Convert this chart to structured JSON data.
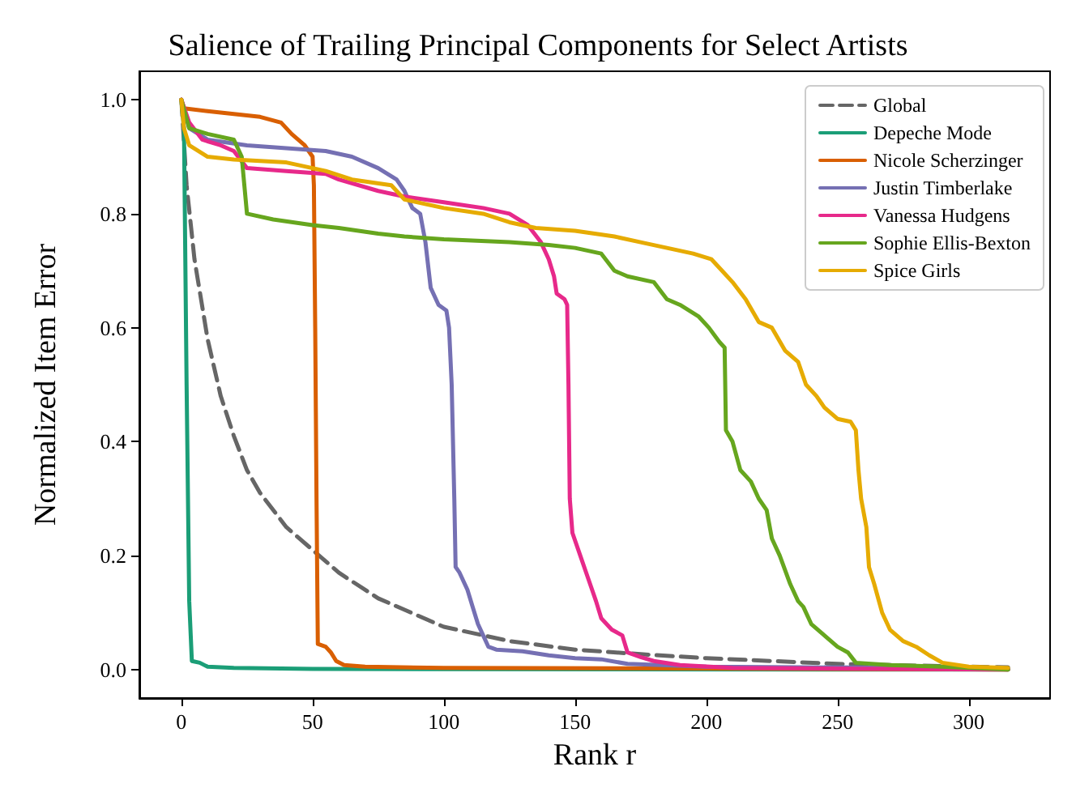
{
  "chart_data": {
    "type": "line",
    "title": "Salience of Trailing Principal Components for Select Artists",
    "xlabel": "Rank r",
    "ylabel": "Normalized Item Error",
    "xlim": [
      -16,
      331
    ],
    "xticks": [
      0,
      50,
      100,
      150,
      200,
      250,
      300
    ],
    "ylim": [
      -0.05,
      1.05
    ],
    "yticks": [
      {
        "value": 0,
        "label": "0.0"
      },
      {
        "value": 0.2,
        "label": "0.2"
      },
      {
        "value": 0.4,
        "label": "0.4"
      },
      {
        "value": 0.6,
        "label": "0.6"
      },
      {
        "value": 0.8,
        "label": "0.8"
      },
      {
        "value": 1,
        "label": "1.0"
      }
    ],
    "grid": false,
    "legend": "top right",
    "marker": "none",
    "series": [
      {
        "name": "Global",
        "color": "#666666",
        "line_style": "dashed",
        "x": [
          0,
          2,
          5,
          10,
          15,
          20,
          25,
          30,
          40,
          50,
          60,
          75,
          100,
          125,
          150,
          175,
          200,
          250,
          300,
          315
        ],
        "values": [
          1.0,
          0.85,
          0.72,
          0.58,
          0.48,
          0.41,
          0.35,
          0.31,
          0.25,
          0.21,
          0.17,
          0.125,
          0.075,
          0.05,
          0.035,
          0.027,
          0.02,
          0.01,
          0.005,
          0.004
        ]
      },
      {
        "name": "Depeche Mode",
        "color": "#1b9e77",
        "x": [
          0,
          1,
          2,
          3,
          4,
          7,
          10,
          20,
          50,
          315
        ],
        "values": [
          1.0,
          0.95,
          0.5,
          0.12,
          0.015,
          0.012,
          0.005,
          0.003,
          0.001,
          0.0
        ]
      },
      {
        "name": "Nicole Scherzinger",
        "color": "#d95f02",
        "x": [
          0,
          1,
          10,
          20,
          30,
          38,
          42,
          47,
          50,
          50.5,
          51,
          51.5,
          52,
          55,
          57,
          59,
          62,
          70,
          100,
          200,
          315
        ],
        "values": [
          1.0,
          0.985,
          0.98,
          0.975,
          0.97,
          0.96,
          0.94,
          0.92,
          0.9,
          0.85,
          0.6,
          0.3,
          0.045,
          0.04,
          0.03,
          0.015,
          0.008,
          0.005,
          0.003,
          0.002,
          0.0
        ]
      },
      {
        "name": "Justin Timberlake",
        "color": "#7570b3",
        "x": [
          0,
          3,
          10,
          25,
          40,
          55,
          65,
          75,
          82,
          85,
          88,
          91,
          93,
          95,
          98,
          101,
          102,
          103,
          104,
          104.5,
          106,
          109,
          111,
          113,
          115,
          117,
          120,
          130,
          140,
          150,
          160,
          170,
          200,
          315
        ],
        "values": [
          1.0,
          0.95,
          0.93,
          0.92,
          0.915,
          0.91,
          0.9,
          0.88,
          0.86,
          0.84,
          0.81,
          0.8,
          0.75,
          0.67,
          0.64,
          0.63,
          0.6,
          0.5,
          0.3,
          0.18,
          0.17,
          0.14,
          0.11,
          0.08,
          0.06,
          0.04,
          0.035,
          0.032,
          0.025,
          0.02,
          0.018,
          0.01,
          0.005,
          0.002
        ]
      },
      {
        "name": "Vanessa Hudgens",
        "color": "#e7298a",
        "x": [
          0,
          3,
          8,
          15,
          20,
          25,
          40,
          55,
          60,
          75,
          85,
          100,
          115,
          125,
          132,
          137,
          140,
          142,
          143,
          146,
          147,
          147.5,
          148,
          149,
          152,
          155,
          158,
          160,
          164,
          168,
          170,
          175,
          180,
          190,
          210,
          315
        ],
        "values": [
          1.0,
          0.96,
          0.93,
          0.92,
          0.91,
          0.88,
          0.875,
          0.87,
          0.86,
          0.84,
          0.83,
          0.82,
          0.81,
          0.8,
          0.78,
          0.75,
          0.72,
          0.69,
          0.66,
          0.65,
          0.64,
          0.5,
          0.3,
          0.24,
          0.2,
          0.16,
          0.12,
          0.09,
          0.07,
          0.06,
          0.03,
          0.022,
          0.015,
          0.008,
          0.003,
          0.0
        ]
      },
      {
        "name": "Sophie Ellis-Bexton",
        "color": "#66a61e",
        "x": [
          0,
          3,
          10,
          20,
          23,
          24,
          25,
          35,
          50,
          60,
          75,
          85,
          100,
          125,
          140,
          150,
          160,
          165,
          170,
          180,
          185,
          190,
          197,
          201,
          205,
          207,
          207.5,
          210,
          213,
          217,
          220,
          223,
          225,
          228,
          232,
          235,
          237,
          240,
          245,
          250,
          254,
          257,
          270,
          290,
          315
        ],
        "values": [
          1.0,
          0.95,
          0.94,
          0.93,
          0.9,
          0.85,
          0.8,
          0.79,
          0.78,
          0.775,
          0.765,
          0.76,
          0.755,
          0.75,
          0.745,
          0.74,
          0.73,
          0.7,
          0.69,
          0.68,
          0.65,
          0.64,
          0.62,
          0.6,
          0.575,
          0.565,
          0.42,
          0.4,
          0.35,
          0.33,
          0.3,
          0.28,
          0.23,
          0.2,
          0.15,
          0.12,
          0.11,
          0.08,
          0.06,
          0.04,
          0.03,
          0.012,
          0.008,
          0.005,
          0.0
        ]
      },
      {
        "name": "Spice Girls",
        "color": "#e6ab02",
        "x": [
          0,
          1,
          3,
          10,
          20,
          40,
          55,
          65,
          80,
          85,
          100,
          115,
          125,
          135,
          150,
          165,
          175,
          185,
          195,
          202,
          206,
          210,
          215,
          220,
          225,
          230,
          235,
          238,
          242,
          245,
          250,
          255,
          257,
          258,
          259,
          261,
          262,
          264,
          267,
          270,
          275,
          280,
          285,
          290,
          300,
          315
        ],
        "values": [
          1.0,
          0.95,
          0.92,
          0.9,
          0.895,
          0.89,
          0.875,
          0.86,
          0.85,
          0.825,
          0.81,
          0.8,
          0.785,
          0.775,
          0.77,
          0.76,
          0.75,
          0.74,
          0.73,
          0.72,
          0.7,
          0.68,
          0.65,
          0.61,
          0.6,
          0.56,
          0.54,
          0.5,
          0.48,
          0.46,
          0.44,
          0.435,
          0.42,
          0.35,
          0.3,
          0.25,
          0.18,
          0.15,
          0.1,
          0.07,
          0.05,
          0.04,
          0.025,
          0.012,
          0.005,
          0.003
        ]
      }
    ]
  }
}
